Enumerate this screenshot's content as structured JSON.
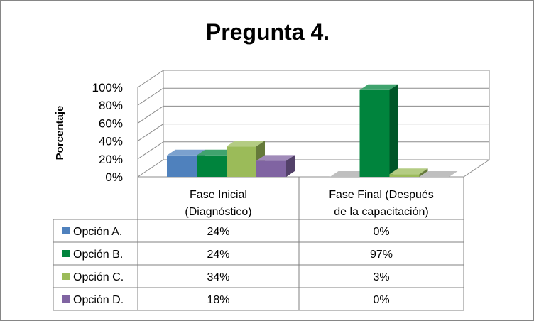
{
  "chart_data": {
    "type": "bar",
    "title": "Pregunta 4.",
    "ylabel": "Porcentaje",
    "xlabel": "",
    "ylim": [
      0,
      100
    ],
    "yticks": [
      "0%",
      "20%",
      "40%",
      "60%",
      "80%",
      "100%"
    ],
    "categories": [
      [
        "Fase Inicial",
        "(Diagnóstico)"
      ],
      [
        "Fase Final (Después",
        "de la capacitación)"
      ]
    ],
    "series": [
      {
        "name": "Opción A.",
        "values": [
          24,
          0
        ],
        "labels": [
          "24%",
          "0%"
        ],
        "color": "#4f81bd"
      },
      {
        "name": "Opción B.",
        "values": [
          24,
          97
        ],
        "labels": [
          "24%",
          "97%"
        ],
        "color": "#00843d"
      },
      {
        "name": "Opción C.",
        "values": [
          34,
          3
        ],
        "labels": [
          "34%",
          "3%"
        ],
        "color": "#9bbb59"
      },
      {
        "name": "Opción D.",
        "values": [
          18,
          0
        ],
        "labels": [
          "18%",
          "0%"
        ],
        "color": "#8064a2"
      }
    ],
    "grid": true,
    "data_table": true
  }
}
